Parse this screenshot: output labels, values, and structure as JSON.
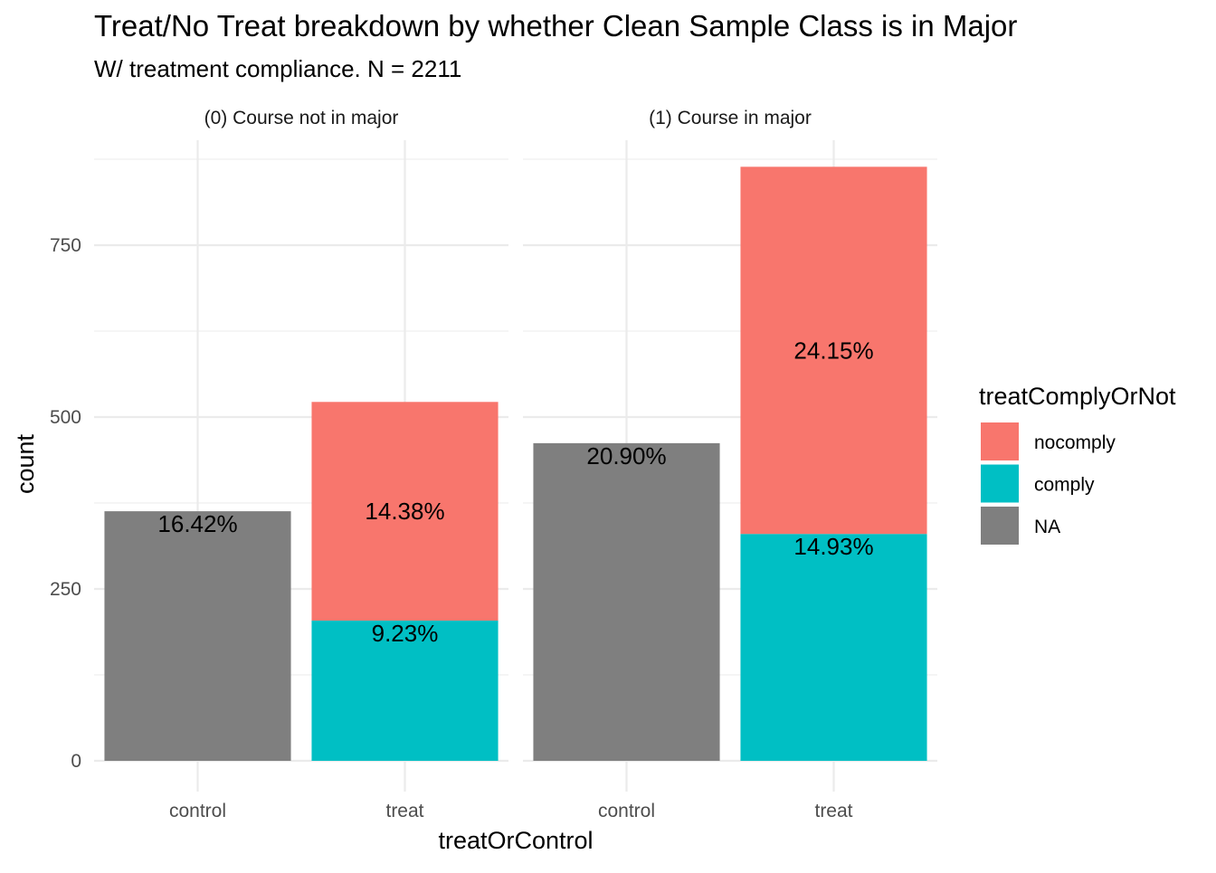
{
  "chart_data": {
    "type": "bar",
    "stacked": true,
    "title": "Treat/No Treat breakdown by whether Clean Sample Class is in Major",
    "subtitle": "W/ treatment compliance. N = 2211",
    "xlabel": "treatOrControl",
    "ylabel": "count",
    "ylim": [
      0,
      900
    ],
    "yticks": [
      0,
      250,
      500,
      750
    ],
    "yminor": [
      125,
      375,
      625,
      875
    ],
    "grid": true,
    "legend": {
      "title": "treatComplyOrNot",
      "position": "right",
      "items": [
        {
          "label": "nocomply",
          "color": "#F8766D"
        },
        {
          "label": "comply",
          "color": "#00BFC4"
        },
        {
          "label": "NA",
          "color": "#7F7F7F"
        }
      ]
    },
    "categories": [
      "control",
      "treat"
    ],
    "facets": [
      {
        "label": "(0) Course not in major",
        "bars": [
          {
            "category": "control",
            "segments": [
              {
                "group": "NA",
                "value": 363,
                "label": "16.42%"
              }
            ]
          },
          {
            "category": "treat",
            "segments": [
              {
                "group": "comply",
                "value": 204,
                "label": "9.23%"
              },
              {
                "group": "nocomply",
                "value": 318,
                "label": "14.38%"
              }
            ]
          }
        ]
      },
      {
        "label": "(1) Course in major",
        "bars": [
          {
            "category": "control",
            "segments": [
              {
                "group": "NA",
                "value": 462,
                "label": "20.90%"
              }
            ]
          },
          {
            "category": "treat",
            "segments": [
              {
                "group": "comply",
                "value": 330,
                "label": "14.93%"
              },
              {
                "group": "nocomply",
                "value": 534,
                "label": "24.15%"
              }
            ]
          }
        ]
      }
    ]
  }
}
